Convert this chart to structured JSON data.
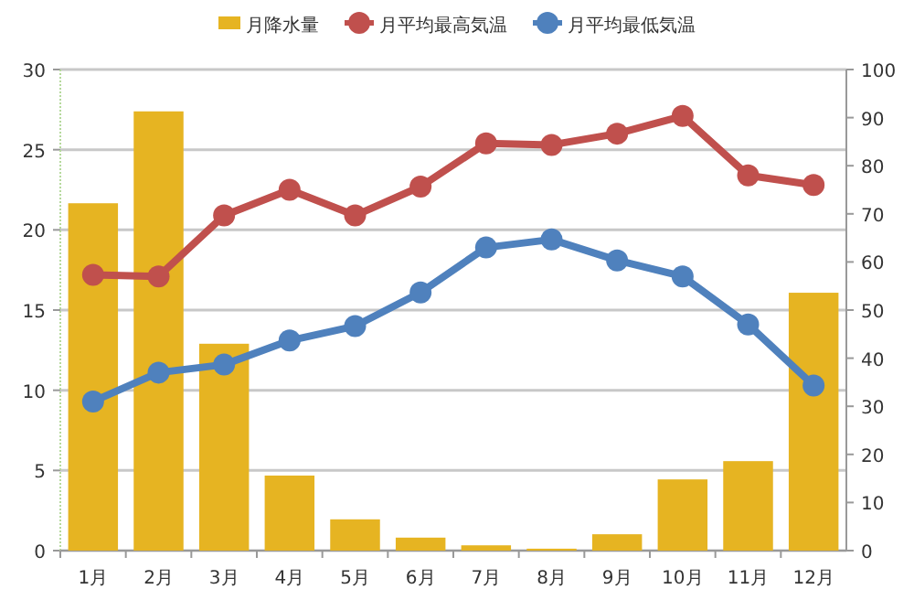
{
  "chart_data": {
    "type": "bar",
    "categories": [
      "1月",
      "2月",
      "3月",
      "4月",
      "5月",
      "6月",
      "7月",
      "8月",
      "9月",
      "10月",
      "11月",
      "12月"
    ],
    "series": [
      {
        "name": "月降水量",
        "axis": "y2",
        "color": "#e6b422",
        "values": [
          72.2,
          91.3,
          43,
          15.6,
          6.5,
          2.7,
          1.1,
          0.4,
          3.4,
          14.8,
          18.6,
          53.6
        ]
      },
      {
        "name": "月平均最高気温",
        "type": "line",
        "color": "#c0504d",
        "values": [
          17.2,
          17.1,
          20.9,
          22.5,
          20.9,
          22.7,
          25.4,
          25.3,
          26,
          27.1,
          23.4,
          22.8
        ]
      },
      {
        "name": "月平均最低気温",
        "type": "line",
        "color": "#4f81bd",
        "values": [
          9.3,
          11.1,
          11.6,
          13.1,
          14,
          16.1,
          18.9,
          19.4,
          18.1,
          17.1,
          14.1,
          10.3
        ]
      }
    ],
    "ylim": [
      0,
      30
    ],
    "yticks": [
      0,
      5,
      10,
      15,
      20,
      25,
      30
    ],
    "y2lim": [
      0,
      100
    ],
    "y2ticks": [
      0,
      10,
      20,
      30,
      40,
      50,
      60,
      70,
      80,
      90,
      100
    ],
    "grid": "y",
    "legend": "top",
    "marker": "circle",
    "line_style": "solid"
  }
}
